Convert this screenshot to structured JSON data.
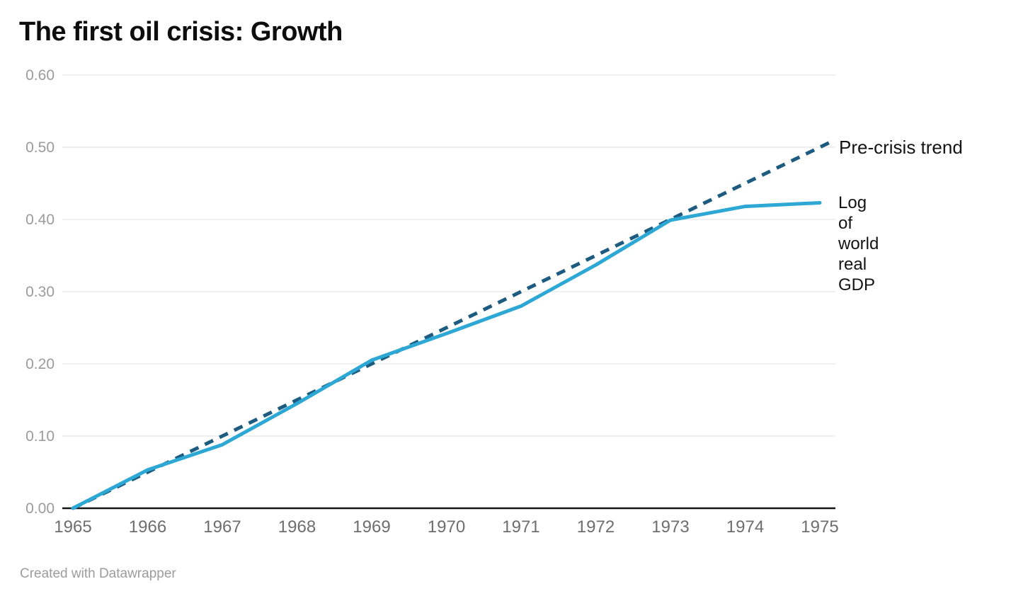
{
  "title": "The first oil crisis: Growth",
  "footer": "Created with Datawrapper",
  "colors": {
    "trend_line": "#1d5c80",
    "gdp_line": "#2da7d4",
    "gridline": "#e6e6e6",
    "axis_line": "#161616",
    "ytick_label": "#9b9b9b",
    "xtick_label": "#6e6e6e",
    "series_label": "#141414",
    "title": "#0d0d0d",
    "footer": "#9c9c9c"
  },
  "labels": {
    "trend": "Pre-crisis trend",
    "gdp_wrapped": "Log\nof\nworld\nreal\nGDP"
  },
  "chart_data": {
    "type": "line",
    "title": "The first oil crisis: Growth",
    "x": [
      1965,
      1966,
      1967,
      1968,
      1969,
      1970,
      1971,
      1972,
      1973,
      1974,
      1975
    ],
    "xlabel": "",
    "ylabel": "",
    "ylim": [
      0,
      0.6
    ],
    "ytick_step": 0.1,
    "ytick_labels": [
      "0.00",
      "0.10",
      "0.20",
      "0.30",
      "0.40",
      "0.50",
      "0.60"
    ],
    "grid": "horizontal",
    "legend_position": "right-inline",
    "series": [
      {
        "name": "Pre-crisis trend",
        "style": "dashed",
        "color": "#1d5c80",
        "values": [
          0.0,
          0.05,
          0.1,
          0.15,
          0.2,
          0.25,
          0.3,
          0.35,
          0.4,
          0.45,
          0.5
        ]
      },
      {
        "name": "Log of world real GDP",
        "style": "solid",
        "color": "#2da7d4",
        "values": [
          0.0,
          0.053,
          0.088,
          0.145,
          0.205,
          0.242,
          0.28,
          0.337,
          0.399,
          0.418,
          0.423
        ]
      }
    ]
  }
}
